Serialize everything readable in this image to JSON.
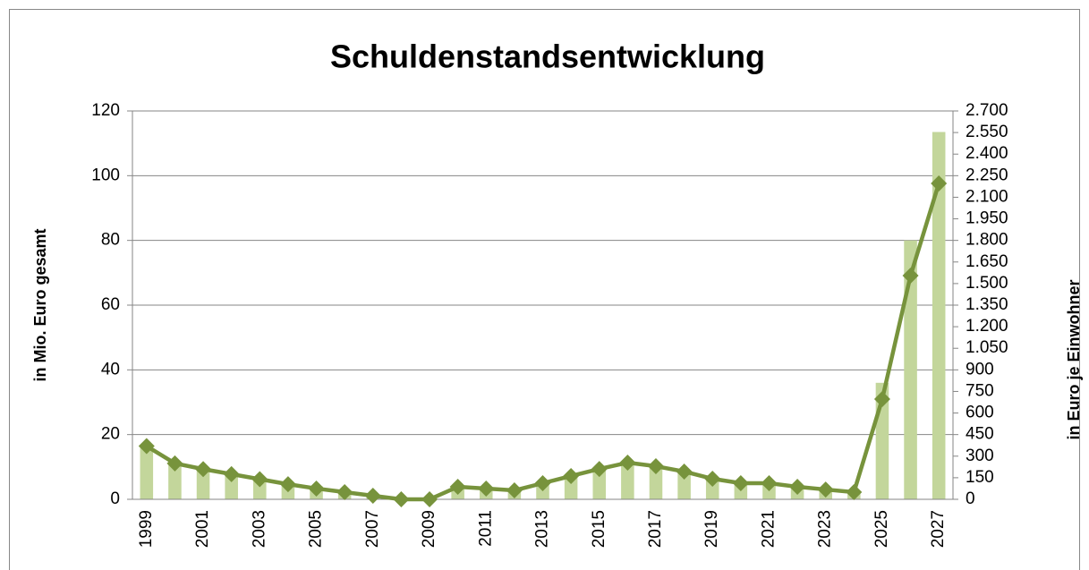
{
  "chart_data": {
    "type": "bar-line",
    "title": "Schuldenstandsentwicklung",
    "y_label": "in Mio. Euro gesamt",
    "y2_label": "in Euro je Einwohner",
    "categories": [
      "1999",
      null,
      "2001",
      null,
      "2003",
      null,
      "2005",
      null,
      "2007",
      null,
      "2009",
      null,
      "2011",
      null,
      "2013",
      null,
      "2015",
      null,
      "2017",
      null,
      "2019",
      null,
      "2021",
      null,
      "2023",
      null,
      "2025",
      null,
      "2027"
    ],
    "series": [
      {
        "type": "bar",
        "color": "#c3d69b",
        "values": [
          16,
          11,
          9.5,
          8,
          6.5,
          5,
          4,
          2.5,
          1,
          0,
          0,
          4,
          3.5,
          3,
          5,
          7,
          9,
          11,
          10,
          8.5,
          6.5,
          5,
          5,
          4,
          3,
          2,
          36,
          80,
          113.5
        ]
      },
      {
        "type": "line",
        "axis": "y2",
        "color": "#77933c",
        "values": [
          370,
          250,
          210,
          175,
          140,
          105,
          75,
          50,
          25,
          0,
          0,
          87,
          75,
          62,
          112,
          162,
          211,
          255,
          230,
          193,
          143,
          112,
          112,
          87,
          68,
          50,
          697,
          1555,
          2196
        ]
      }
    ],
    "ylim": [
      0,
      120
    ],
    "yticks": [
      0,
      20,
      40,
      60,
      80,
      100,
      120
    ],
    "y2lim": [
      0,
      2700
    ],
    "y2ticks": [
      0,
      150,
      300,
      450,
      600,
      750,
      900,
      {
        "value": 1050,
        "label": "1.050"
      },
      {
        "value": 1200,
        "label": "1.200"
      },
      {
        "value": 1350,
        "label": "1.350"
      },
      {
        "value": 1500,
        "label": "1.500"
      },
      {
        "value": 1650,
        "label": "1.650"
      },
      {
        "value": 1800,
        "label": "1.800"
      },
      {
        "value": 1950,
        "label": "1.950"
      },
      {
        "value": 2100,
        "label": "2.100"
      },
      {
        "value": 2250,
        "label": "2.250"
      },
      {
        "value": 2400,
        "label": "2.400"
      },
      {
        "value": 2550,
        "label": "2.550"
      },
      {
        "value": 2700,
        "label": "2.700"
      }
    ],
    "grid": true
  }
}
